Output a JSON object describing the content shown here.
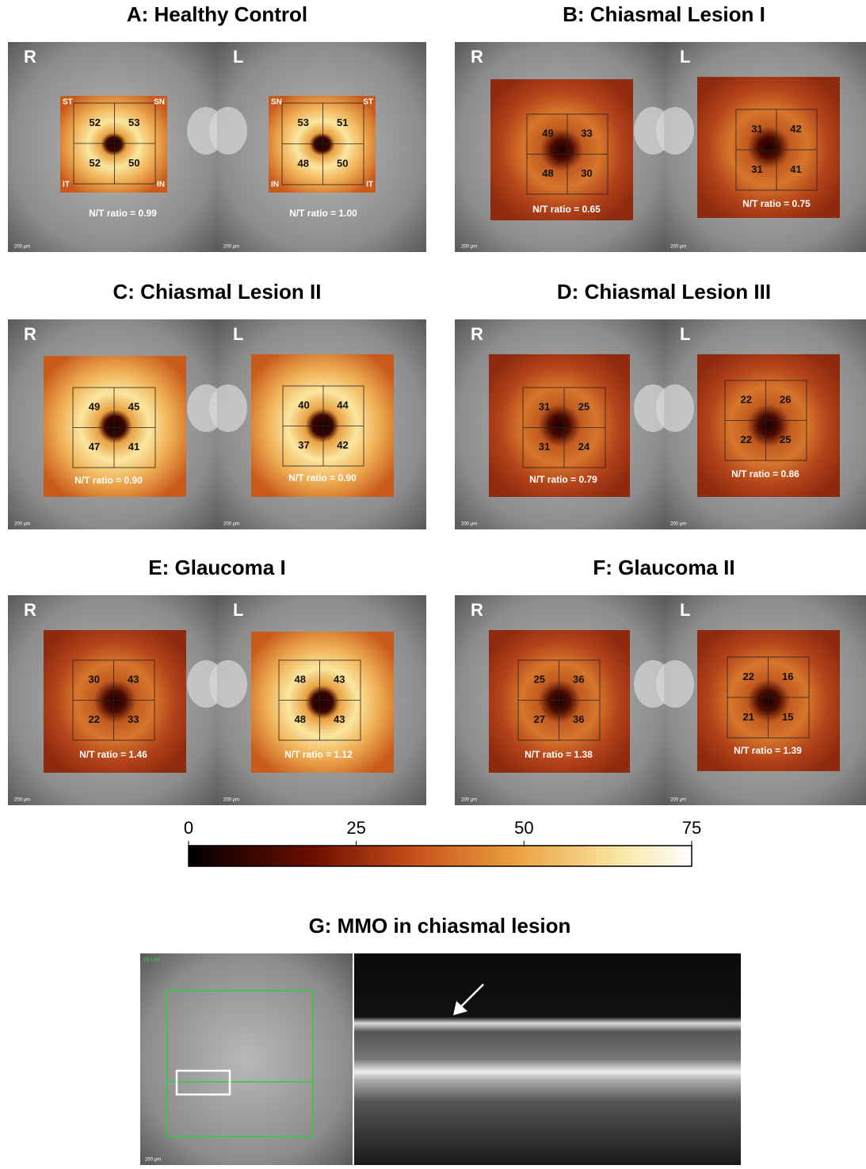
{
  "panels": [
    {
      "title": "A: Healthy Control",
      "eyes": [
        {
          "label": "R",
          "quadrants": [
            52,
            53,
            52,
            50
          ],
          "ratio": "N/T ratio = 0.99",
          "corners": [
            "ST",
            "SN",
            "IT",
            "IN"
          ],
          "scale": "200 µm"
        },
        {
          "label": "L",
          "quadrants": [
            53,
            51,
            48,
            50
          ],
          "ratio": "N/T ratio = 1.00",
          "corners": [
            "SN",
            "ST",
            "IN",
            "IT"
          ],
          "scale": "200 µm"
        }
      ]
    },
    {
      "title": "B: Chiasmal Lesion I",
      "eyes": [
        {
          "label": "R",
          "quadrants": [
            49,
            33,
            48,
            30
          ],
          "ratio": "N/T ratio = 0.65",
          "scale": "200 µm"
        },
        {
          "label": "L",
          "quadrants": [
            31,
            42,
            31,
            41
          ],
          "ratio": "N/T ratio = 0.75",
          "scale": "200 µm"
        }
      ]
    },
    {
      "title": "C: Chiasmal Lesion II",
      "eyes": [
        {
          "label": "R",
          "quadrants": [
            49,
            45,
            47,
            41
          ],
          "ratio": "N/T ratio = 0.90",
          "scale": "200 µm"
        },
        {
          "label": "L",
          "quadrants": [
            40,
            44,
            37,
            42
          ],
          "ratio": "N/T ratio = 0.90",
          "scale": "200 µm"
        }
      ]
    },
    {
      "title": "D: Chiasmal Lesion III",
      "eyes": [
        {
          "label": "R",
          "quadrants": [
            31,
            25,
            31,
            24
          ],
          "ratio": "N/T ratio = 0.79",
          "scale": "200 µm"
        },
        {
          "label": "L",
          "quadrants": [
            22,
            26,
            22,
            25
          ],
          "ratio": "N/T ratio = 0.86",
          "scale": "200 µm"
        }
      ]
    },
    {
      "title": "E: Glaucoma I",
      "eyes": [
        {
          "label": "R",
          "quadrants": [
            30,
            43,
            22,
            33
          ],
          "ratio": "N/T ratio = 1.46",
          "scale": "200 µm"
        },
        {
          "label": "L",
          "quadrants": [
            48,
            43,
            48,
            43
          ],
          "ratio": "N/T ratio = 1.12",
          "scale": "200 µm"
        }
      ]
    },
    {
      "title": "F: Glaucoma II",
      "eyes": [
        {
          "label": "R",
          "quadrants": [
            25,
            36,
            27,
            36
          ],
          "ratio": "N/T ratio = 1.38",
          "scale": "200 µm"
        },
        {
          "label": "L",
          "quadrants": [
            22,
            16,
            21,
            15
          ],
          "ratio": "N/T ratio = 1.39",
          "scale": "200 µm"
        }
      ]
    }
  ],
  "colorbar": {
    "lim": [
      0,
      75
    ],
    "ticks": [
      0,
      25,
      50,
      75
    ]
  },
  "panel_g": {
    "title": "G: MMO in chiasmal lesion",
    "scan_index": "19 / 49",
    "scale": "200 µm"
  }
}
